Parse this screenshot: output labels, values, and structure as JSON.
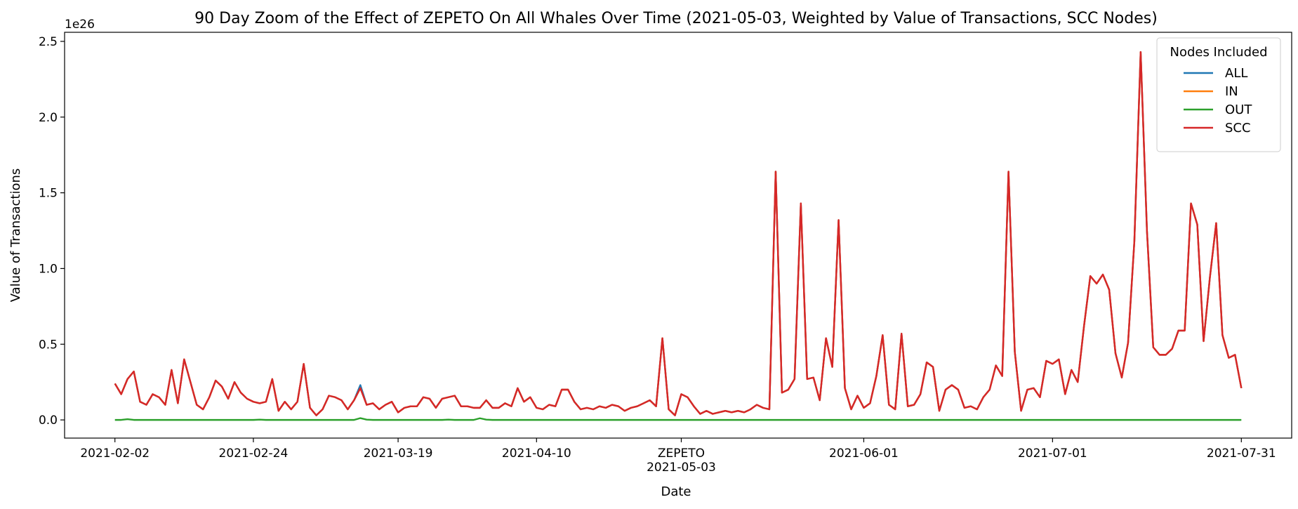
{
  "chart_data": {
    "type": "line",
    "title": "90 Day Zoom of the Effect of ZEPETO On All Whales Over Time (2021-05-03, Weighted by Value of Transactions, SCC Nodes)",
    "xlabel": "Date",
    "ylabel": "Value of Transactions",
    "y_offset_label": "1e26",
    "y_unit_multiplier": 1e+26,
    "ylim": [
      -0.12,
      2.56
    ],
    "xlim": [
      "2021-01-25",
      "2021-08-08"
    ],
    "y_ticks": [
      0.0,
      0.5,
      1.0,
      1.5,
      2.0,
      2.5
    ],
    "y_tick_labels": [
      "0.0",
      "0.5",
      "1.0",
      "1.5",
      "2.0",
      "2.5"
    ],
    "x_ticks": [
      "2021-02-02",
      "2021-02-24",
      "2021-03-19",
      "2021-04-10",
      "2021-05-03",
      "2021-06-01",
      "2021-07-01",
      "2021-07-31"
    ],
    "x_tick_labels": [
      [
        "2021-02-02"
      ],
      [
        "2021-02-24"
      ],
      [
        "2021-03-19"
      ],
      [
        "2021-04-10"
      ],
      [
        "ZEPETO",
        "2021-05-03"
      ],
      [
        "2021-06-01"
      ],
      [
        "2021-07-01"
      ],
      [
        "2021-07-31"
      ]
    ],
    "grid": false,
    "legend": {
      "title": "Nodes Included",
      "location": "top-right"
    },
    "x_start": "2021-02-02",
    "x_step_days": 1,
    "series": [
      {
        "name": "ALL",
        "color": "#1f77b4",
        "values": [
          0.24,
          0.17,
          0.27,
          0.32,
          0.12,
          0.1,
          0.17,
          0.15,
          0.1,
          0.33,
          0.11,
          0.4,
          0.25,
          0.1,
          0.07,
          0.15,
          0.26,
          0.22,
          0.14,
          0.25,
          0.18,
          0.14,
          0.12,
          0.11,
          0.12,
          0.27,
          0.06,
          0.12,
          0.07,
          0.12,
          0.37,
          0.08,
          0.03,
          0.07,
          0.16,
          0.15,
          0.13,
          0.07,
          0.13,
          0.23,
          0.1,
          0.11,
          0.07,
          0.1,
          0.12,
          0.05,
          0.08,
          0.09,
          0.09,
          0.15,
          0.14,
          0.08,
          0.14,
          0.15,
          0.16,
          0.09,
          0.09,
          0.08,
          0.08,
          0.13,
          0.08,
          0.08,
          0.11,
          0.09,
          0.21,
          0.12,
          0.15,
          0.08,
          0.07,
          0.1,
          0.09,
          0.2,
          0.2,
          0.12,
          0.07,
          0.08,
          0.07,
          0.09,
          0.08,
          0.1,
          0.09,
          0.06,
          0.08,
          0.09,
          0.11,
          0.13,
          0.09,
          0.54,
          0.07,
          0.03,
          0.17,
          0.15,
          0.09,
          0.04,
          0.06,
          0.04,
          0.05,
          0.06,
          0.05,
          0.06,
          0.05,
          0.07,
          0.1,
          0.08,
          0.07,
          1.64,
          0.18,
          0.2,
          0.27,
          1.43,
          0.27,
          0.28,
          0.13,
          0.54,
          0.35,
          1.32,
          0.21,
          0.07,
          0.16,
          0.08,
          0.11,
          0.29,
          0.56,
          0.1,
          0.07,
          0.57,
          0.09,
          0.1,
          0.17,
          0.38,
          0.35,
          0.06,
          0.2,
          0.23,
          0.2,
          0.08,
          0.09,
          0.07,
          0.15,
          0.2,
          0.36,
          0.29,
          1.64,
          0.45,
          0.06,
          0.2,
          0.21,
          0.15,
          0.39,
          0.37,
          0.4,
          0.17,
          0.33,
          0.25,
          0.62,
          0.95,
          0.9,
          0.96,
          0.86,
          0.44,
          0.28,
          0.51,
          1.18,
          2.43,
          1.25,
          0.48,
          0.43,
          0.43,
          0.47,
          0.59,
          0.59,
          1.43,
          1.29,
          0.52,
          0.94,
          1.3,
          0.56,
          0.41,
          0.43,
          0.21
        ]
      },
      {
        "name": "IN",
        "color": "#ff7f0e",
        "values": [
          0.24,
          0.17,
          0.27,
          0.32,
          0.12,
          0.1,
          0.17,
          0.15,
          0.1,
          0.33,
          0.11,
          0.4,
          0.25,
          0.1,
          0.07,
          0.15,
          0.26,
          0.22,
          0.14,
          0.25,
          0.18,
          0.14,
          0.12,
          0.11,
          0.12,
          0.27,
          0.06,
          0.12,
          0.07,
          0.12,
          0.37,
          0.08,
          0.03,
          0.07,
          0.16,
          0.15,
          0.13,
          0.07,
          0.13,
          0.21,
          0.1,
          0.11,
          0.07,
          0.1,
          0.12,
          0.05,
          0.08,
          0.09,
          0.09,
          0.15,
          0.14,
          0.08,
          0.14,
          0.15,
          0.16,
          0.09,
          0.09,
          0.08,
          0.08,
          0.13,
          0.08,
          0.08,
          0.11,
          0.09,
          0.21,
          0.12,
          0.15,
          0.08,
          0.07,
          0.1,
          0.09,
          0.2,
          0.2,
          0.12,
          0.07,
          0.08,
          0.07,
          0.09,
          0.08,
          0.1,
          0.09,
          0.06,
          0.08,
          0.09,
          0.11,
          0.13,
          0.09,
          0.54,
          0.07,
          0.03,
          0.17,
          0.15,
          0.09,
          0.04,
          0.06,
          0.04,
          0.05,
          0.06,
          0.05,
          0.06,
          0.05,
          0.07,
          0.1,
          0.08,
          0.07,
          1.64,
          0.18,
          0.2,
          0.27,
          1.43,
          0.27,
          0.28,
          0.13,
          0.54,
          0.35,
          1.32,
          0.21,
          0.07,
          0.16,
          0.08,
          0.11,
          0.29,
          0.56,
          0.1,
          0.07,
          0.57,
          0.09,
          0.1,
          0.17,
          0.38,
          0.35,
          0.06,
          0.2,
          0.23,
          0.2,
          0.08,
          0.09,
          0.07,
          0.15,
          0.2,
          0.36,
          0.29,
          1.64,
          0.45,
          0.06,
          0.2,
          0.21,
          0.15,
          0.39,
          0.37,
          0.4,
          0.17,
          0.33,
          0.25,
          0.62,
          0.95,
          0.9,
          0.96,
          0.86,
          0.44,
          0.28,
          0.51,
          1.18,
          2.43,
          1.25,
          0.48,
          0.43,
          0.43,
          0.47,
          0.59,
          0.59,
          1.43,
          1.29,
          0.52,
          0.94,
          1.3,
          0.56,
          0.41,
          0.43,
          0.21
        ]
      },
      {
        "name": "OUT",
        "color": "#2ca02c",
        "values": [
          0.0,
          0.0,
          0.005,
          0.0,
          0.0,
          0.0,
          0.0,
          0.0,
          0.0,
          0.0,
          0.0,
          0.0,
          0.0,
          0.0,
          0.0,
          0.0,
          0.0,
          0.0,
          0.0,
          0.0,
          0.0,
          0.0,
          0.0,
          0.002,
          0.0,
          0.0,
          0.0,
          0.0,
          0.0,
          0.0,
          0.0,
          0.0,
          0.0,
          0.0,
          0.0,
          0.0,
          0.0,
          0.0,
          0.0,
          0.012,
          0.002,
          0.0,
          0.0,
          0.0,
          0.0,
          0.0,
          0.0,
          0.0,
          0.0,
          0.0,
          0.0,
          0.0,
          0.0,
          0.002,
          0.0,
          0.0,
          0.0,
          0.0,
          0.011,
          0.002,
          0.0,
          0.0,
          0.0,
          0.0,
          0.0,
          0.0,
          0.0,
          0.0,
          0.0,
          0.0,
          0.0,
          0.0,
          0.0,
          0.0,
          0.0,
          0.0,
          0.0,
          0.0,
          0.0,
          0.0,
          0.0,
          0.0,
          0.0,
          0.0,
          0.0,
          0.0,
          0.0,
          0.0,
          0.0,
          0.0,
          0.0,
          0.0,
          0.0,
          0.0,
          0.0,
          0.0,
          0.0,
          0.0,
          0.0,
          0.0,
          0.0,
          0.0,
          0.0,
          0.0,
          0.0,
          0.0,
          0.0,
          0.0,
          0.0,
          0.0,
          0.0,
          0.0,
          0.0,
          0.0,
          0.0,
          0.0,
          0.0,
          0.0,
          0.0,
          0.0,
          0.0,
          0.0,
          0.0,
          0.0,
          0.0,
          0.0,
          0.0,
          0.0,
          0.0,
          0.0,
          0.0,
          0.0,
          0.0,
          0.0,
          0.0,
          0.0,
          0.0,
          0.0,
          0.0,
          0.0,
          0.0,
          0.0,
          0.0,
          0.0,
          0.0,
          0.0,
          0.0,
          0.0,
          0.0,
          0.0,
          0.0,
          0.0,
          0.0,
          0.0,
          0.0,
          0.0,
          0.0,
          0.0,
          0.0,
          0.0,
          0.0,
          0.0,
          0.0,
          0.0,
          0.0,
          0.0,
          0.0,
          0.0,
          0.0,
          0.0,
          0.0,
          0.0,
          0.0,
          0.0,
          0.0,
          0.0,
          0.0,
          0.0,
          0.0,
          0.0
        ]
      },
      {
        "name": "SCC",
        "color": "#d62728",
        "values": [
          0.24,
          0.17,
          0.27,
          0.32,
          0.12,
          0.1,
          0.17,
          0.15,
          0.1,
          0.33,
          0.11,
          0.4,
          0.25,
          0.1,
          0.07,
          0.15,
          0.26,
          0.22,
          0.14,
          0.25,
          0.18,
          0.14,
          0.12,
          0.11,
          0.12,
          0.27,
          0.06,
          0.12,
          0.07,
          0.12,
          0.37,
          0.08,
          0.03,
          0.07,
          0.16,
          0.15,
          0.13,
          0.07,
          0.13,
          0.21,
          0.1,
          0.11,
          0.07,
          0.1,
          0.12,
          0.05,
          0.08,
          0.09,
          0.09,
          0.15,
          0.14,
          0.08,
          0.14,
          0.15,
          0.16,
          0.09,
          0.09,
          0.08,
          0.08,
          0.13,
          0.08,
          0.08,
          0.11,
          0.09,
          0.21,
          0.12,
          0.15,
          0.08,
          0.07,
          0.1,
          0.09,
          0.2,
          0.2,
          0.12,
          0.07,
          0.08,
          0.07,
          0.09,
          0.08,
          0.1,
          0.09,
          0.06,
          0.08,
          0.09,
          0.11,
          0.13,
          0.09,
          0.54,
          0.07,
          0.03,
          0.17,
          0.15,
          0.09,
          0.04,
          0.06,
          0.04,
          0.05,
          0.06,
          0.05,
          0.06,
          0.05,
          0.07,
          0.1,
          0.08,
          0.07,
          1.64,
          0.18,
          0.2,
          0.27,
          1.43,
          0.27,
          0.28,
          0.13,
          0.54,
          0.35,
          1.32,
          0.21,
          0.07,
          0.16,
          0.08,
          0.11,
          0.29,
          0.56,
          0.1,
          0.07,
          0.57,
          0.09,
          0.1,
          0.17,
          0.38,
          0.35,
          0.06,
          0.2,
          0.23,
          0.2,
          0.08,
          0.09,
          0.07,
          0.15,
          0.2,
          0.36,
          0.29,
          1.64,
          0.45,
          0.06,
          0.2,
          0.21,
          0.15,
          0.39,
          0.37,
          0.4,
          0.17,
          0.33,
          0.25,
          0.62,
          0.95,
          0.9,
          0.96,
          0.86,
          0.44,
          0.28,
          0.51,
          1.18,
          2.43,
          1.25,
          0.48,
          0.43,
          0.43,
          0.47,
          0.59,
          0.59,
          1.43,
          1.29,
          0.52,
          0.94,
          1.3,
          0.56,
          0.41,
          0.43,
          0.21
        ]
      }
    ]
  }
}
